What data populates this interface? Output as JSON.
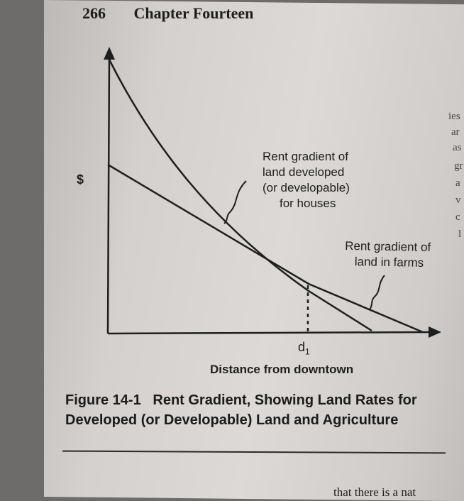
{
  "header": {
    "page_number": "266",
    "chapter_title": "Chapter Fourteen"
  },
  "figure": {
    "y_axis_label": "$",
    "x_axis_label": "Distance from downtown",
    "distance_marker": "d",
    "distance_marker_sub": "1",
    "curve_houses_label": [
      "Rent gradient of",
      "land developed",
      "(or developable)",
      "for houses"
    ],
    "curve_farms_label": [
      "Rent gradient of",
      "land in farms"
    ]
  },
  "caption": {
    "prefix": "Figure 14-1",
    "text": "Rent Gradient, Showing Land Rates for Developed (or Developable) Land and Agriculture"
  },
  "right_margin_bleed": [
    "ies",
    "ar",
    "as",
    "gr",
    "a",
    "v",
    "c",
    "l"
  ],
  "bottom_bleed": "that there is a nat"
}
